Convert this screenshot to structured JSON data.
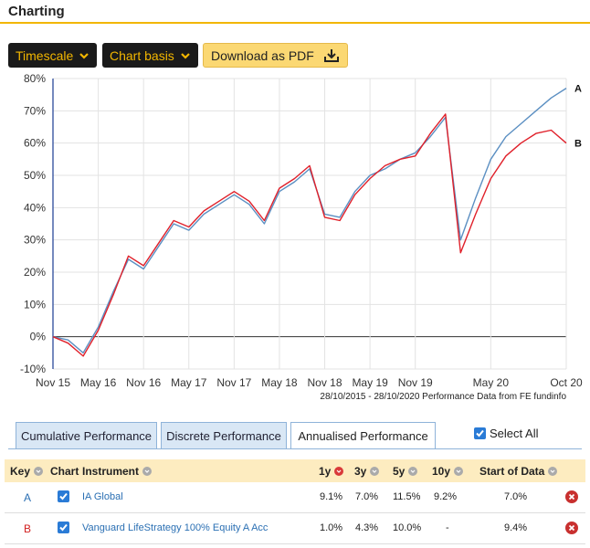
{
  "header": {
    "title": "Charting"
  },
  "toolbar": {
    "timescale_label": "Timescale",
    "chart_basis_label": "Chart basis",
    "pdf_label": "Download as PDF"
  },
  "colors": {
    "accent": "#f2b600",
    "series_a": "#5b8fc2",
    "series_b": "#e0202a",
    "key_a": "#2a6fb3",
    "key_b": "#d22020"
  },
  "chart_caption": "28/10/2015 - 28/10/2020 Performance Data from FE fundinfo",
  "chart_data": {
    "type": "line",
    "x": [
      "Nov 15",
      "Jan 16",
      "Mar 16",
      "May 16",
      "Jul 16",
      "Sep 16",
      "Nov 16",
      "Jan 17",
      "Mar 17",
      "May 17",
      "Jul 17",
      "Sep 17",
      "Nov 17",
      "Jan 18",
      "Mar 18",
      "May 18",
      "Jul 18",
      "Sep 18",
      "Nov 18",
      "Jan 19",
      "Mar 19",
      "May 19",
      "Jul 19",
      "Sep 19",
      "Nov 19",
      "Jan 20",
      "Feb 20",
      "Mar 20",
      "Apr 20",
      "May 20",
      "Jun 20",
      "Jul 20",
      "Aug 20",
      "Sep 20",
      "Oct 20"
    ],
    "series": [
      {
        "name": "A",
        "values": [
          0,
          -1,
          -5,
          3,
          14,
          24,
          21,
          28,
          35,
          33,
          38,
          41,
          44,
          41,
          35,
          45,
          48,
          52,
          38,
          37,
          45,
          50,
          52,
          55,
          57,
          62,
          68,
          30,
          43,
          55,
          62,
          66,
          70,
          74,
          77
        ]
      },
      {
        "name": "B",
        "values": [
          0,
          -2,
          -6,
          2,
          13,
          25,
          22,
          29,
          36,
          34,
          39,
          42,
          45,
          42,
          36,
          46,
          49,
          53,
          37,
          36,
          44,
          49,
          53,
          55,
          56,
          63,
          69,
          26,
          38,
          49,
          56,
          60,
          63,
          64,
          60
        ]
      }
    ],
    "x_ticks": [
      "Nov 15",
      "May 16",
      "Nov 16",
      "May 17",
      "Nov 17",
      "May 18",
      "Nov 18",
      "May 19",
      "Nov 19",
      "May 20",
      "Oct 20"
    ],
    "y_ticks": [
      "-10%",
      "0%",
      "10%",
      "20%",
      "30%",
      "40%",
      "50%",
      "60%",
      "70%",
      "80%"
    ],
    "ylim": [
      -10,
      80
    ],
    "grid": true,
    "legend": "end-labels-right"
  },
  "tabs": [
    {
      "label": "Cumulative Performance"
    },
    {
      "label": "Discrete Performance"
    },
    {
      "label": "Annualised Performance"
    }
  ],
  "select_all_label": "Select All",
  "table": {
    "headers": {
      "key": "Key",
      "chart": "Chart",
      "instrument": "Instrument",
      "y1": "1y",
      "y3": "3y",
      "y5": "5y",
      "y10": "10y",
      "start": "Start of Data"
    },
    "rows": [
      {
        "key": "A",
        "instrument": "IA Global",
        "y1": "9.1%",
        "y3": "7.0%",
        "y5": "11.5%",
        "y10": "9.2%",
        "start": "7.0%"
      },
      {
        "key": "B",
        "instrument": "Vanguard LifeStrategy 100% Equity A Acc",
        "y1": "1.0%",
        "y3": "4.3%",
        "y5": "10.0%",
        "y10": "-",
        "start": "9.4%"
      }
    ]
  }
}
